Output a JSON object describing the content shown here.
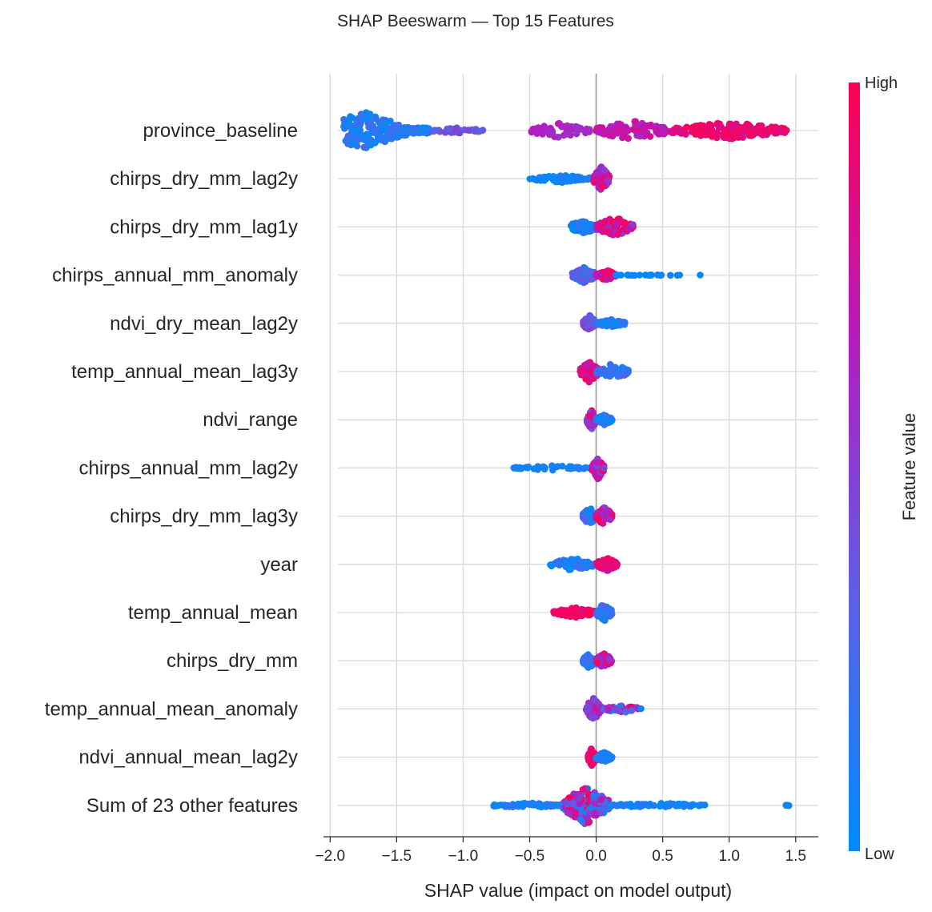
{
  "chart_data": {
    "type": "scatter",
    "subtype": "shap-beeswarm",
    "title": "SHAP Beeswarm — Top 15 Features",
    "xlabel": "SHAP value (impact on model output)",
    "xlim": [
      -2.05,
      1.67
    ],
    "xticks": [
      -2.0,
      -1.5,
      -1.0,
      -0.5,
      0.0,
      0.5,
      1.0,
      1.5
    ],
    "xtick_labels": [
      "−2.0",
      "−1.5",
      "−1.0",
      "−0.5",
      "0.0",
      "0.5",
      "1.0",
      "1.5"
    ],
    "grid": true,
    "zero_line": 0.0,
    "colorbar": {
      "title": "Feature value",
      "high_label": "High",
      "low_label": "Low",
      "colors": [
        "#008bfb",
        "#5d5fe5",
        "#b51bbf",
        "#ff0052"
      ]
    },
    "features": [
      {
        "name": "province_baseline",
        "clusters": [
          {
            "lo": -1.9,
            "hi": -1.25,
            "n": 220,
            "spread": 0.55,
            "c0": 0.0,
            "c1": 0.25,
            "mid": -1.75
          },
          {
            "lo": -1.25,
            "hi": -0.85,
            "n": 40,
            "spread": 0.2,
            "c0": 0.3,
            "c1": 0.5
          },
          {
            "lo": -0.5,
            "hi": -0.05,
            "n": 50,
            "spread": 0.45,
            "c0": 0.55,
            "c1": 0.7
          },
          {
            "lo": 0.0,
            "hi": 0.55,
            "n": 90,
            "spread": 0.45,
            "c0": 0.62,
            "c1": 0.8
          },
          {
            "lo": 0.55,
            "hi": 1.45,
            "n": 170,
            "spread": 0.28,
            "c0": 0.82,
            "c1": 1.0
          }
        ]
      },
      {
        "name": "chirps_dry_mm_lag2y",
        "clusters": [
          {
            "lo": -0.5,
            "hi": -0.05,
            "n": 60,
            "spread": 0.22,
            "c0": 0.0,
            "c1": 0.12
          },
          {
            "lo": -0.02,
            "hi": 0.1,
            "n": 90,
            "spread": 0.55,
            "c0": 0.35,
            "c1": 1.0
          }
        ]
      },
      {
        "name": "chirps_dry_mm_lag1y",
        "clusters": [
          {
            "lo": -0.2,
            "hi": 0.0,
            "n": 70,
            "spread": 0.4,
            "c0": 0.0,
            "c1": 0.2
          },
          {
            "lo": 0.0,
            "hi": 0.28,
            "n": 90,
            "spread": 0.45,
            "c0": 0.45,
            "c1": 1.0
          }
        ]
      },
      {
        "name": "chirps_annual_mm_anomaly",
        "clusters": [
          {
            "lo": -0.18,
            "hi": 0.0,
            "n": 60,
            "spread": 0.45,
            "c0": 0.1,
            "c1": 0.45
          },
          {
            "lo": 0.0,
            "hi": 0.15,
            "n": 60,
            "spread": 0.3,
            "c0": 0.65,
            "c1": 1.0
          },
          {
            "lo": 0.15,
            "hi": 0.85,
            "n": 20,
            "spread": 0.05,
            "c0": 0.0,
            "c1": 0.1
          }
        ]
      },
      {
        "name": "ndvi_dry_mean_lag2y",
        "clusters": [
          {
            "lo": -0.1,
            "hi": 0.0,
            "n": 60,
            "spread": 0.45,
            "c0": 0.3,
            "c1": 0.65
          },
          {
            "lo": 0.0,
            "hi": 0.22,
            "n": 80,
            "spread": 0.2,
            "c0": 0.0,
            "c1": 0.25
          }
        ]
      },
      {
        "name": "temp_annual_mean_lag3y",
        "clusters": [
          {
            "lo": -0.12,
            "hi": 0.02,
            "n": 90,
            "spread": 0.5,
            "c0": 0.65,
            "c1": 1.0
          },
          {
            "lo": 0.0,
            "hi": 0.25,
            "n": 60,
            "spread": 0.45,
            "c0": 0.0,
            "c1": 0.3
          }
        ]
      },
      {
        "name": "ndvi_range",
        "clusters": [
          {
            "lo": -0.07,
            "hi": 0.0,
            "n": 60,
            "spread": 0.55,
            "c0": 0.4,
            "c1": 1.0
          },
          {
            "lo": 0.0,
            "hi": 0.12,
            "n": 60,
            "spread": 0.3,
            "c0": 0.0,
            "c1": 0.25
          }
        ]
      },
      {
        "name": "chirps_annual_mm_lag2y",
        "clusters": [
          {
            "lo": -0.62,
            "hi": -0.05,
            "n": 45,
            "spread": 0.15,
            "c0": 0.0,
            "c1": 0.12
          },
          {
            "lo": -0.03,
            "hi": 0.06,
            "n": 80,
            "spread": 0.55,
            "c0": 0.4,
            "c1": 1.0
          }
        ]
      },
      {
        "name": "chirps_dry_mm_lag3y",
        "clusters": [
          {
            "lo": -0.1,
            "hi": 0.0,
            "n": 60,
            "spread": 0.5,
            "c0": 0.0,
            "c1": 0.3
          },
          {
            "lo": 0.0,
            "hi": 0.12,
            "n": 70,
            "spread": 0.5,
            "c0": 0.5,
            "c1": 1.0
          }
        ]
      },
      {
        "name": "year",
        "clusters": [
          {
            "lo": -0.35,
            "hi": 0.0,
            "n": 60,
            "spread": 0.35,
            "c0": 0.0,
            "c1": 0.25
          },
          {
            "lo": 0.0,
            "hi": 0.16,
            "n": 70,
            "spread": 0.35,
            "c0": 0.7,
            "c1": 1.0
          }
        ]
      },
      {
        "name": "temp_annual_mean",
        "clusters": [
          {
            "lo": -0.32,
            "hi": 0.0,
            "n": 80,
            "spread": 0.25,
            "c0": 0.85,
            "c1": 1.0
          },
          {
            "lo": 0.0,
            "hi": 0.12,
            "n": 60,
            "spread": 0.5,
            "c0": 0.0,
            "c1": 0.35
          }
        ]
      },
      {
        "name": "chirps_dry_mm",
        "clusters": [
          {
            "lo": -0.1,
            "hi": 0.0,
            "n": 60,
            "spread": 0.45,
            "c0": 0.0,
            "c1": 0.3
          },
          {
            "lo": 0.0,
            "hi": 0.12,
            "n": 60,
            "spread": 0.45,
            "c0": 0.45,
            "c1": 1.0
          }
        ]
      },
      {
        "name": "temp_annual_mean_anomaly",
        "clusters": [
          {
            "lo": -0.08,
            "hi": 0.04,
            "n": 80,
            "spread": 0.55,
            "c0": 0.35,
            "c1": 0.8
          },
          {
            "lo": 0.04,
            "hi": 0.35,
            "n": 40,
            "spread": 0.25,
            "c0": 0.0,
            "c1": 1.0
          }
        ]
      },
      {
        "name": "ndvi_annual_mean_lag2y",
        "clusters": [
          {
            "lo": -0.06,
            "hi": 0.0,
            "n": 60,
            "spread": 0.55,
            "c0": 0.8,
            "c1": 1.0
          },
          {
            "lo": 0.0,
            "hi": 0.12,
            "n": 50,
            "spread": 0.3,
            "c0": 0.0,
            "c1": 0.3
          }
        ]
      },
      {
        "name": "Sum of 23 other features",
        "clusters": [
          {
            "lo": -0.78,
            "hi": -0.25,
            "n": 60,
            "spread": 0.15,
            "c0": 0.0,
            "c1": 0.2
          },
          {
            "lo": -0.25,
            "hi": 0.1,
            "n": 170,
            "spread": 0.65,
            "c0": 0.0,
            "c1": 1.0
          },
          {
            "lo": 0.1,
            "hi": 0.82,
            "n": 70,
            "spread": 0.12,
            "c0": 0.0,
            "c1": 0.15
          },
          {
            "lo": 1.42,
            "hi": 1.46,
            "n": 4,
            "spread": 0.05,
            "c0": 0.0,
            "c1": 0.1
          }
        ]
      }
    ]
  }
}
